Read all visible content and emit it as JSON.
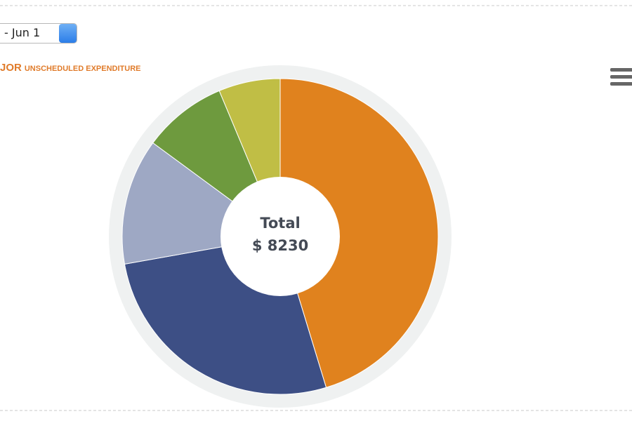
{
  "date_range": "- Jun 1",
  "chart_data": {
    "type": "pie",
    "title": "JOR",
    "subtitle": "UNSCHEDULED EXPENDITURE",
    "center_label": "Total",
    "center_value": "$ 8230",
    "values": [
      45.3,
      26.9,
      12.9,
      8.6,
      6.3
    ],
    "colors": [
      "#e0821e",
      "#3d4f85",
      "#9ea8c4",
      "#6e9a3e",
      "#c0be45"
    ]
  }
}
